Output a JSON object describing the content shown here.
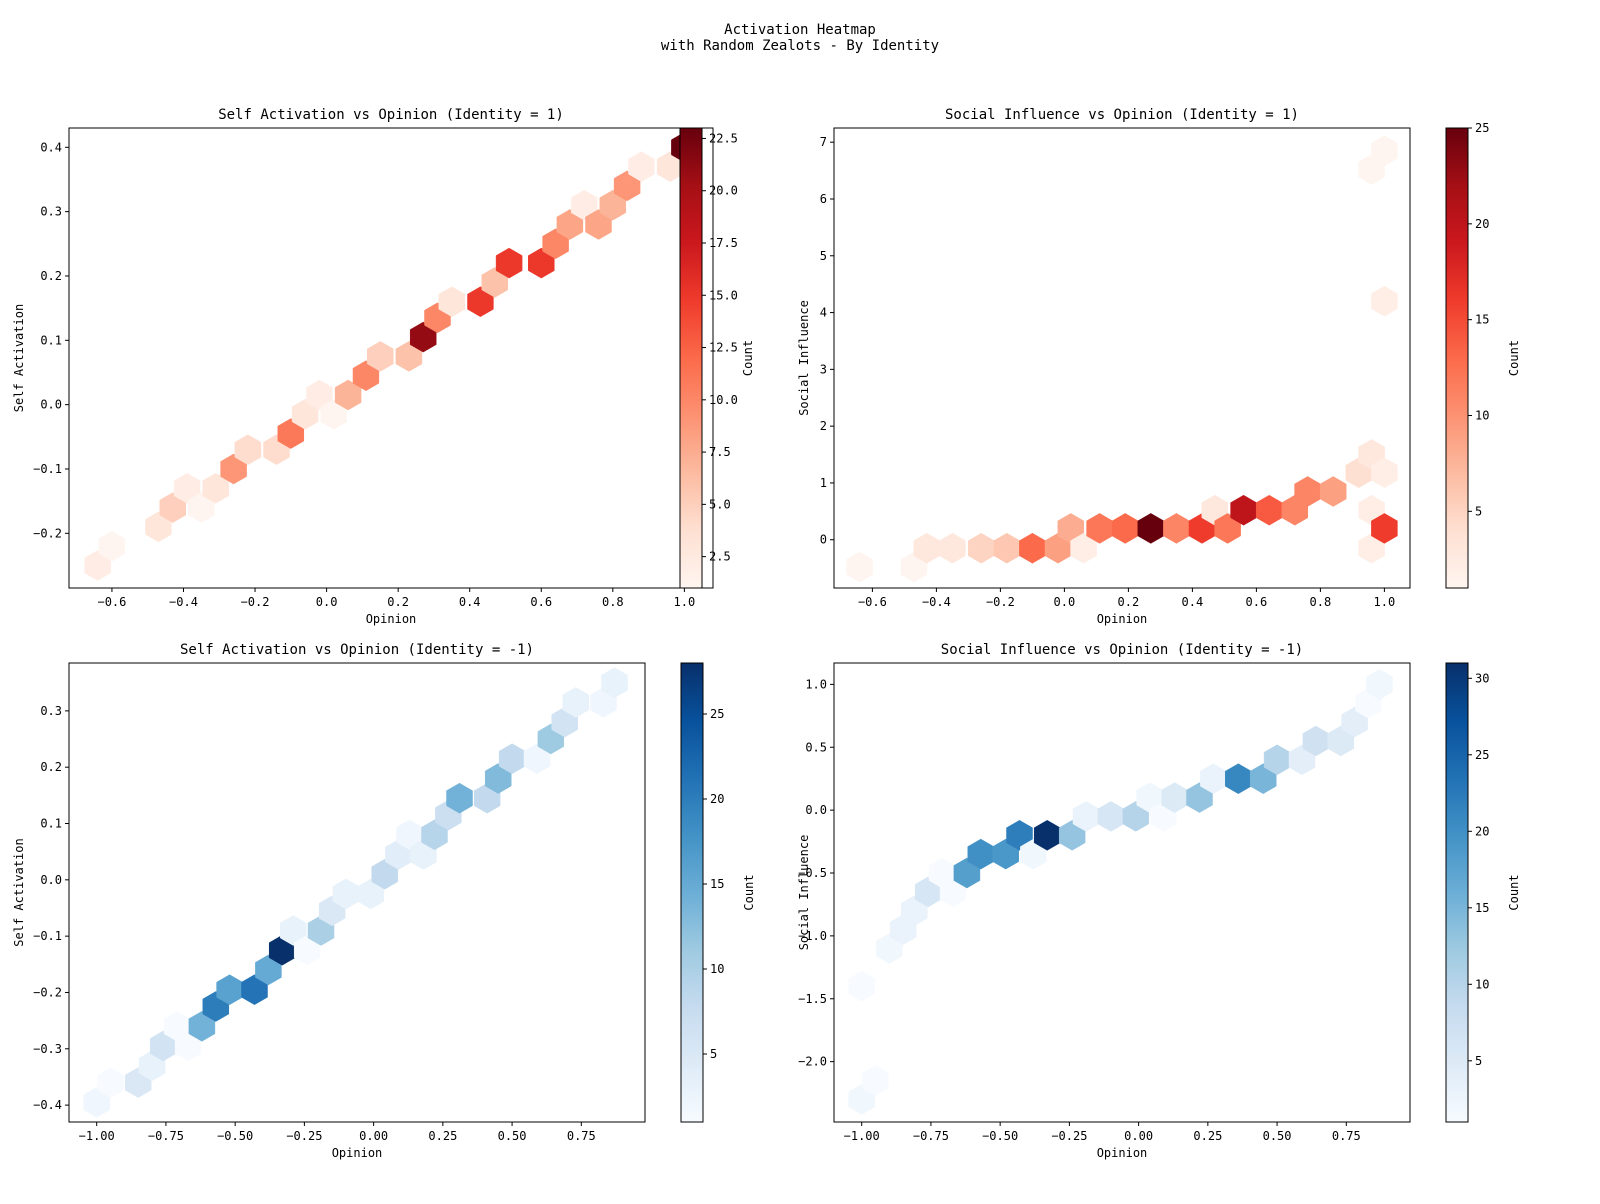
{
  "figure": {
    "title_line1": "Activation Heatmap",
    "title_line2": "with Random Zealots - By Identity"
  },
  "chart_data": [
    {
      "type": "heatmap",
      "subtype": "hexbin",
      "title": "Self Activation vs Opinion (Identity = 1)",
      "xlabel": "Opinion",
      "ylabel": "Self Activation",
      "xlim": [
        -0.72,
        1.08
      ],
      "ylim": [
        -0.285,
        0.43
      ],
      "xticks": [
        -0.6,
        -0.4,
        -0.2,
        0.0,
        0.2,
        0.4,
        0.6,
        0.8,
        1.0
      ],
      "xtick_labels": [
        "−0.6",
        "−0.4",
        "−0.2",
        "0.0",
        "0.2",
        "0.4",
        "0.6",
        "0.8",
        "1.0"
      ],
      "yticks": [
        -0.2,
        -0.1,
        0.0,
        0.1,
        0.2,
        0.3,
        0.4
      ],
      "ytick_labels": [
        "−0.2",
        "−0.1",
        "0.0",
        "0.1",
        "0.2",
        "0.3",
        "0.4"
      ],
      "colormap": "Reds",
      "colorbar": {
        "label": "Count",
        "min": 1,
        "max": 23,
        "ticks": [
          2.5,
          5.0,
          7.5,
          10.0,
          12.5,
          15.0,
          17.5,
          20.0,
          22.5
        ],
        "tick_labels": [
          "2.5",
          "5.0",
          "7.5",
          "10.0",
          "12.5",
          "15.0",
          "17.5",
          "20.0",
          "22.5"
        ]
      },
      "points": [
        {
          "x": -0.64,
          "y": -0.25,
          "count": 2
        },
        {
          "x": -0.6,
          "y": -0.22,
          "count": 1
        },
        {
          "x": -0.47,
          "y": -0.19,
          "count": 3
        },
        {
          "x": -0.43,
          "y": -0.16,
          "count": 5
        },
        {
          "x": -0.39,
          "y": -0.13,
          "count": 2
        },
        {
          "x": -0.35,
          "y": -0.16,
          "count": 1
        },
        {
          "x": -0.31,
          "y": -0.13,
          "count": 3
        },
        {
          "x": -0.26,
          "y": -0.1,
          "count": 9
        },
        {
          "x": -0.22,
          "y": -0.07,
          "count": 4
        },
        {
          "x": -0.14,
          "y": -0.07,
          "count": 4
        },
        {
          "x": -0.1,
          "y": -0.045,
          "count": 11
        },
        {
          "x": -0.06,
          "y": -0.015,
          "count": 3
        },
        {
          "x": -0.02,
          "y": 0.015,
          "count": 2
        },
        {
          "x": 0.02,
          "y": -0.015,
          "count": 1
        },
        {
          "x": 0.06,
          "y": 0.015,
          "count": 7
        },
        {
          "x": 0.11,
          "y": 0.045,
          "count": 10
        },
        {
          "x": 0.15,
          "y": 0.075,
          "count": 5
        },
        {
          "x": 0.23,
          "y": 0.075,
          "count": 6
        },
        {
          "x": 0.27,
          "y": 0.105,
          "count": 21
        },
        {
          "x": 0.31,
          "y": 0.135,
          "count": 10
        },
        {
          "x": 0.35,
          "y": 0.16,
          "count": 3
        },
        {
          "x": 0.43,
          "y": 0.16,
          "count": 15
        },
        {
          "x": 0.47,
          "y": 0.19,
          "count": 6
        },
        {
          "x": 0.51,
          "y": 0.22,
          "count": 15
        },
        {
          "x": 0.6,
          "y": 0.22,
          "count": 15
        },
        {
          "x": 0.64,
          "y": 0.25,
          "count": 10
        },
        {
          "x": 0.68,
          "y": 0.28,
          "count": 8
        },
        {
          "x": 0.72,
          "y": 0.31,
          "count": 2
        },
        {
          "x": 0.76,
          "y": 0.28,
          "count": 8
        },
        {
          "x": 0.8,
          "y": 0.31,
          "count": 7
        },
        {
          "x": 0.84,
          "y": 0.34,
          "count": 9
        },
        {
          "x": 0.88,
          "y": 0.37,
          "count": 2
        },
        {
          "x": 0.96,
          "y": 0.37,
          "count": 3
        },
        {
          "x": 1.0,
          "y": 0.4,
          "count": 23
        }
      ]
    },
    {
      "type": "heatmap",
      "subtype": "hexbin",
      "title": "Social Influence vs Opinion (Identity = 1)",
      "xlabel": "Opinion",
      "ylabel": "Social Influence",
      "xlim": [
        -0.72,
        1.08
      ],
      "ylim": [
        -0.85,
        7.25
      ],
      "xticks": [
        -0.6,
        -0.4,
        -0.2,
        0.0,
        0.2,
        0.4,
        0.6,
        0.8,
        1.0
      ],
      "xtick_labels": [
        "−0.6",
        "−0.4",
        "−0.2",
        "0.0",
        "0.2",
        "0.4",
        "0.6",
        "0.8",
        "1.0"
      ],
      "yticks": [
        0,
        1,
        2,
        3,
        4,
        5,
        6,
        7
      ],
      "ytick_labels": [
        "0",
        "1",
        "2",
        "3",
        "4",
        "5",
        "6",
        "7"
      ],
      "colormap": "Reds",
      "colorbar": {
        "label": "Count",
        "min": 1,
        "max": 25,
        "ticks": [
          5,
          10,
          15,
          20,
          25
        ],
        "tick_labels": [
          "5",
          "10",
          "15",
          "20",
          "25"
        ]
      },
      "points": [
        {
          "x": -0.64,
          "y": -0.48,
          "count": 1
        },
        {
          "x": -0.47,
          "y": -0.48,
          "count": 1
        },
        {
          "x": -0.43,
          "y": -0.15,
          "count": 3
        },
        {
          "x": -0.35,
          "y": -0.15,
          "count": 3
        },
        {
          "x": -0.26,
          "y": -0.15,
          "count": 5
        },
        {
          "x": -0.18,
          "y": -0.15,
          "count": 6
        },
        {
          "x": -0.1,
          "y": -0.15,
          "count": 13
        },
        {
          "x": -0.02,
          "y": -0.15,
          "count": 9
        },
        {
          "x": 0.02,
          "y": 0.2,
          "count": 8
        },
        {
          "x": 0.06,
          "y": -0.15,
          "count": 2
        },
        {
          "x": 0.11,
          "y": 0.2,
          "count": 12
        },
        {
          "x": 0.19,
          "y": 0.2,
          "count": 13
        },
        {
          "x": 0.27,
          "y": 0.2,
          "count": 25
        },
        {
          "x": 0.35,
          "y": 0.2,
          "count": 11
        },
        {
          "x": 0.43,
          "y": 0.2,
          "count": 16
        },
        {
          "x": 0.47,
          "y": 0.52,
          "count": 3
        },
        {
          "x": 0.51,
          "y": 0.2,
          "count": 12
        },
        {
          "x": 0.56,
          "y": 0.52,
          "count": 20
        },
        {
          "x": 0.64,
          "y": 0.52,
          "count": 14
        },
        {
          "x": 0.72,
          "y": 0.52,
          "count": 11
        },
        {
          "x": 0.76,
          "y": 0.85,
          "count": 11
        },
        {
          "x": 0.84,
          "y": 0.85,
          "count": 9
        },
        {
          "x": 0.92,
          "y": 1.18,
          "count": 4
        },
        {
          "x": 0.96,
          "y": 1.5,
          "count": 3
        },
        {
          "x": 0.96,
          "y": 0.52,
          "count": 2
        },
        {
          "x": 0.96,
          "y": -0.15,
          "count": 2
        },
        {
          "x": 1.0,
          "y": 1.18,
          "count": 2
        },
        {
          "x": 1.0,
          "y": 0.2,
          "count": 16
        },
        {
          "x": 1.0,
          "y": 4.2,
          "count": 2
        },
        {
          "x": 0.96,
          "y": 6.52,
          "count": 1
        },
        {
          "x": 1.0,
          "y": 6.85,
          "count": 1
        }
      ]
    },
    {
      "type": "heatmap",
      "subtype": "hexbin",
      "title": "Self Activation vs Opinion (Identity = -1)",
      "xlabel": "Opinion",
      "ylabel": "Self Activation",
      "xlim": [
        -1.1,
        0.98
      ],
      "ylim": [
        -0.43,
        0.385
      ],
      "xticks": [
        -1.0,
        -0.75,
        -0.5,
        -0.25,
        0.0,
        0.25,
        0.5,
        0.75
      ],
      "xtick_labels": [
        "−1.00",
        "−0.75",
        "−0.50",
        "−0.25",
        "0.00",
        "0.25",
        "0.50",
        "0.75"
      ],
      "yticks": [
        -0.4,
        -0.3,
        -0.2,
        -0.1,
        0.0,
        0.1,
        0.2,
        0.3
      ],
      "ytick_labels": [
        "−0.4",
        "−0.3",
        "−0.2",
        "−0.1",
        "0.0",
        "0.1",
        "0.2",
        "0.3"
      ],
      "colormap": "Blues",
      "colorbar": {
        "label": "Count",
        "min": 1,
        "max": 28,
        "ticks": [
          5,
          10,
          15,
          20,
          25
        ],
        "tick_labels": [
          "5",
          "10",
          "15",
          "20",
          "25"
        ]
      },
      "points": [
        {
          "x": -1.0,
          "y": -0.395,
          "count": 2
        },
        {
          "x": -0.95,
          "y": -0.36,
          "count": 1
        },
        {
          "x": -0.85,
          "y": -0.36,
          "count": 5
        },
        {
          "x": -0.8,
          "y": -0.33,
          "count": 3
        },
        {
          "x": -0.76,
          "y": -0.295,
          "count": 6
        },
        {
          "x": -0.71,
          "y": -0.26,
          "count": 1
        },
        {
          "x": -0.67,
          "y": -0.295,
          "count": 1
        },
        {
          "x": -0.62,
          "y": -0.26,
          "count": 14
        },
        {
          "x": -0.57,
          "y": -0.225,
          "count": 20
        },
        {
          "x": -0.52,
          "y": -0.195,
          "count": 16
        },
        {
          "x": -0.43,
          "y": -0.195,
          "count": 21
        },
        {
          "x": -0.38,
          "y": -0.16,
          "count": 15
        },
        {
          "x": -0.33,
          "y": -0.125,
          "count": 28
        },
        {
          "x": -0.29,
          "y": -0.09,
          "count": 3
        },
        {
          "x": -0.24,
          "y": -0.125,
          "count": 1
        },
        {
          "x": -0.19,
          "y": -0.09,
          "count": 10
        },
        {
          "x": -0.15,
          "y": -0.055,
          "count": 5
        },
        {
          "x": -0.1,
          "y": -0.025,
          "count": 3
        },
        {
          "x": -0.01,
          "y": -0.025,
          "count": 3
        },
        {
          "x": 0.04,
          "y": 0.01,
          "count": 8
        },
        {
          "x": 0.09,
          "y": 0.045,
          "count": 4
        },
        {
          "x": 0.13,
          "y": 0.08,
          "count": 2
        },
        {
          "x": 0.18,
          "y": 0.045,
          "count": 3
        },
        {
          "x": 0.22,
          "y": 0.08,
          "count": 9
        },
        {
          "x": 0.27,
          "y": 0.115,
          "count": 7
        },
        {
          "x": 0.31,
          "y": 0.145,
          "count": 14
        },
        {
          "x": 0.41,
          "y": 0.145,
          "count": 8
        },
        {
          "x": 0.45,
          "y": 0.18,
          "count": 13
        },
        {
          "x": 0.5,
          "y": 0.215,
          "count": 8
        },
        {
          "x": 0.59,
          "y": 0.215,
          "count": 2
        },
        {
          "x": 0.64,
          "y": 0.25,
          "count": 11
        },
        {
          "x": 0.69,
          "y": 0.28,
          "count": 6
        },
        {
          "x": 0.73,
          "y": 0.315,
          "count": 3
        },
        {
          "x": 0.83,
          "y": 0.315,
          "count": 2
        },
        {
          "x": 0.87,
          "y": 0.35,
          "count": 3
        }
      ]
    },
    {
      "type": "heatmap",
      "subtype": "hexbin",
      "title": "Social Influence vs Opinion (Identity = -1)",
      "xlabel": "Opinion",
      "ylabel": "Social Influence",
      "xlim": [
        -1.1,
        0.98
      ],
      "ylim": [
        -2.48,
        1.17
      ],
      "xticks": [
        -1.0,
        -0.75,
        -0.5,
        -0.25,
        0.0,
        0.25,
        0.5,
        0.75
      ],
      "xtick_labels": [
        "−1.00",
        "−0.75",
        "−0.50",
        "−0.25",
        "0.00",
        "0.25",
        "0.50",
        "0.75"
      ],
      "yticks": [
        -2.0,
        -1.5,
        -1.0,
        -0.5,
        0.0,
        0.5,
        1.0
      ],
      "ytick_labels": [
        "−2.0",
        "−1.5",
        "−1.0",
        "−0.5",
        "0.0",
        "0.5",
        "1.0"
      ],
      "colormap": "Blues",
      "colorbar": {
        "label": "Count",
        "min": 1,
        "max": 31,
        "ticks": [
          5,
          10,
          15,
          20,
          25,
          30
        ],
        "tick_labels": [
          "5",
          "10",
          "15",
          "20",
          "25",
          "30"
        ]
      },
      "points": [
        {
          "x": -1.0,
          "y": -2.3,
          "count": 2
        },
        {
          "x": -0.95,
          "y": -2.15,
          "count": 1
        },
        {
          "x": -1.0,
          "y": -1.4,
          "count": 1
        },
        {
          "x": -0.9,
          "y": -1.1,
          "count": 2
        },
        {
          "x": -0.85,
          "y": -0.95,
          "count": 3
        },
        {
          "x": -0.81,
          "y": -0.8,
          "count": 3
        },
        {
          "x": -0.76,
          "y": -0.65,
          "count": 6
        },
        {
          "x": -0.71,
          "y": -0.5,
          "count": 1
        },
        {
          "x": -0.67,
          "y": -0.65,
          "count": 1
        },
        {
          "x": -0.62,
          "y": -0.5,
          "count": 18
        },
        {
          "x": -0.57,
          "y": -0.35,
          "count": 20
        },
        {
          "x": -0.48,
          "y": -0.35,
          "count": 19
        },
        {
          "x": -0.43,
          "y": -0.2,
          "count": 22
        },
        {
          "x": -0.38,
          "y": -0.35,
          "count": 2
        },
        {
          "x": -0.33,
          "y": -0.2,
          "count": 31
        },
        {
          "x": -0.24,
          "y": -0.2,
          "count": 13
        },
        {
          "x": -0.19,
          "y": -0.05,
          "count": 3
        },
        {
          "x": -0.1,
          "y": -0.05,
          "count": 6
        },
        {
          "x": -0.01,
          "y": -0.05,
          "count": 10
        },
        {
          "x": 0.04,
          "y": 0.1,
          "count": 2
        },
        {
          "x": 0.09,
          "y": -0.05,
          "count": 1
        },
        {
          "x": 0.13,
          "y": 0.1,
          "count": 5
        },
        {
          "x": 0.22,
          "y": 0.1,
          "count": 13
        },
        {
          "x": 0.27,
          "y": 0.25,
          "count": 3
        },
        {
          "x": 0.36,
          "y": 0.25,
          "count": 21
        },
        {
          "x": 0.45,
          "y": 0.25,
          "count": 15
        },
        {
          "x": 0.5,
          "y": 0.4,
          "count": 10
        },
        {
          "x": 0.59,
          "y": 0.4,
          "count": 4
        },
        {
          "x": 0.64,
          "y": 0.55,
          "count": 7
        },
        {
          "x": 0.73,
          "y": 0.55,
          "count": 5
        },
        {
          "x": 0.78,
          "y": 0.7,
          "count": 4
        },
        {
          "x": 0.83,
          "y": 0.85,
          "count": 1
        },
        {
          "x": 0.87,
          "y": 1.0,
          "count": 2
        }
      ]
    }
  ]
}
